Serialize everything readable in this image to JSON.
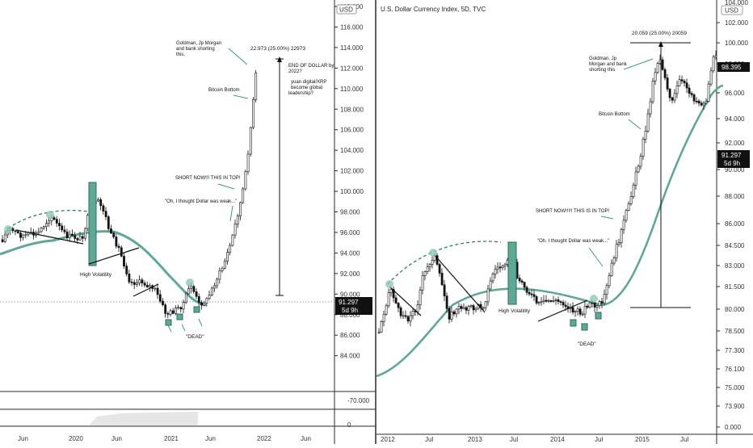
{
  "colors": {
    "candle": "#111111",
    "ma_line": "#5fa898",
    "arrow": "#3d9a82",
    "box_fill": "#5ea896",
    "axis_line": "#2a2a2a",
    "badge_bg": "#111111",
    "subpanel_fill": "#e6e6e6"
  },
  "left_panel": {
    "currency_badge": "USD",
    "price_badge": "91.297",
    "time_badge": "5d 9h",
    "y_ticks": [
      "118.000",
      "116.000",
      "114.000",
      "112.000",
      "110.000",
      "108.000",
      "106.000",
      "104.000",
      "102.000",
      "100.000",
      "98.000",
      "96.000",
      "94.000",
      "92.000",
      "90.000",
      "88.000",
      "86.000",
      "84.000"
    ],
    "sub_ticks": [
      "-70.000",
      "0"
    ],
    "x_ticks": [
      "Jun",
      "2020",
      "Jun",
      "2021",
      "Jun",
      "2022",
      "Jun"
    ],
    "annotations": {
      "goldman": [
        "Goldman, Jp Morgan",
        "and bank shorting",
        "this."
      ],
      "measure": "22.973 (25.00%) 22973",
      "end_dollar": [
        "END OF DOLLAR by",
        "2022?"
      ],
      "yuan": [
        "yuan digital/XRP",
        "become global",
        "leadership?"
      ],
      "bitcoin_bottom": "Bitcoin Bottom",
      "short_now": "SHORT NOW!!! THIS IN TOP!",
      "thought": "\"Oh, I thought Dollar was weak...\"",
      "high_vol": "High Volatility",
      "dead": "\"DEAD\""
    }
  },
  "right_panel": {
    "title": "U.S. Dollar Currency Index, 5D, TVC",
    "currency_badge": "USD",
    "current_badge": "98.395",
    "price_badge": "91.297",
    "time_badge": "5d 9h",
    "y_ticks": [
      "102.000",
      "100.000",
      "98.000",
      "96.000",
      "94.000",
      "92.000",
      "90.000",
      "88.000",
      "86.000",
      "84.500",
      "83.000",
      "81.500",
      "80.000",
      "78.500",
      "77.300",
      "76.100",
      "75.000",
      "73.900",
      "0.000"
    ],
    "top_tick": "104.000",
    "x_ticks": [
      "2012",
      "Jul",
      "2013",
      "Jul",
      "2014",
      "Jul",
      "2015",
      "Jul"
    ],
    "annotations": {
      "measure": "20.059 (25.00%) 20059",
      "goldman": [
        "Goldman, Jp",
        "Morgan  and bank",
        "shorting this"
      ],
      "bitcoin_bottom": "Bitcoin Bottom",
      "short_now": "SHORT NOW!!!!! THIS IS IN TOP!",
      "thought": "\"Oh. I thought Dollar was weak...\"",
      "high_vol": "High Volatility",
      "dead": "\"DEAD\""
    }
  }
}
